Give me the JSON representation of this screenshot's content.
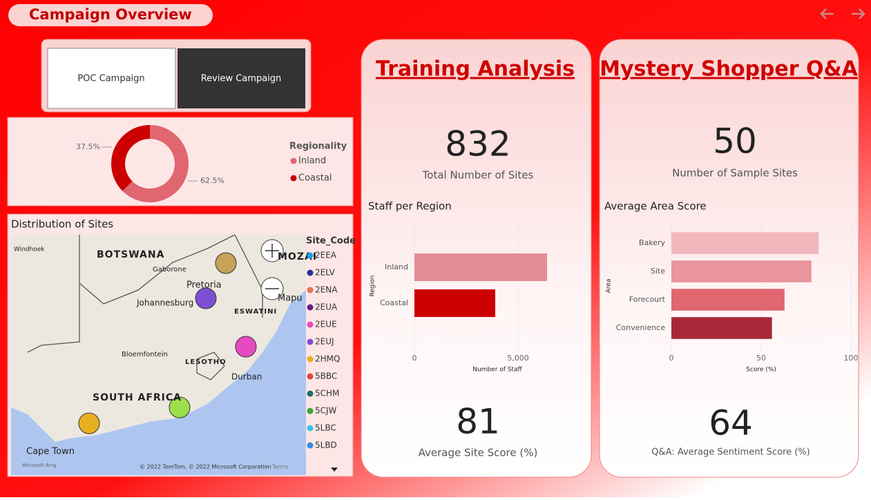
{
  "header": {
    "title": "Campaign Overview"
  },
  "buttons": [
    "POC Campaign",
    "Review Campaign"
  ],
  "cards": [
    {
      "title": "Training Analysis",
      "kpis": [
        {
          "value": 832,
          "label": "Total Number of Sites"
        },
        {
          "value": 81,
          "label": "Average Site Score (%)"
        }
      ]
    },
    {
      "title": "Mystery Shopper Q&A",
      "kpis": [
        {
          "value": 50,
          "label": "Number of Sample Sites"
        },
        {
          "value": 64,
          "label": "Q&A: Average Sentiment Score (%)"
        }
      ]
    }
  ],
  "map": {
    "title": "Distribution of Sites",
    "places": [
      "Windhoek",
      "BOTSWANA",
      "Gaborone",
      "Pretoria",
      "Johannesburg",
      "MOZAI",
      "Mapu",
      "ESWATINI",
      "Bloemfontein",
      "LESOTHO",
      "Durban",
      "SOUTH AFRICA",
      "Cape Town"
    ],
    "attribution": "© 2022 TomTom, © 2022 Microsoft Corporation",
    "terms": "Terms",
    "provider": "Microsoft Bing",
    "legend_title": "Site_Code",
    "legend": [
      {
        "name": "2EEA",
        "color": "#1f9ee8"
      },
      {
        "name": "2ELV",
        "color": "#1f2f9e"
      },
      {
        "name": "2ENA",
        "color": "#e8744a"
      },
      {
        "name": "2EUA",
        "color": "#6b1a8a"
      },
      {
        "name": "2EUE",
        "color": "#e64ac0"
      },
      {
        "name": "2EUJ",
        "color": "#7b4fd0"
      },
      {
        "name": "2HMQ",
        "color": "#e8b020"
      },
      {
        "name": "5BBC",
        "color": "#d94a4a"
      },
      {
        "name": "5CHM",
        "color": "#1a6e6e"
      },
      {
        "name": "5CJW",
        "color": "#3aa83a"
      },
      {
        "name": "5LBC",
        "color": "#33c5f0"
      },
      {
        "name": "5LBD",
        "color": "#3a8ae8"
      }
    ]
  },
  "chart_data": [
    {
      "type": "donut",
      "legend_title": "Regionality",
      "categories": [
        "Inland",
        "Coastal"
      ],
      "values": [
        62.5,
        37.5
      ],
      "value_labels": [
        "62.5%",
        "37.5%"
      ],
      "colors": [
        "#e06670",
        "#cc0000"
      ]
    },
    {
      "type": "hbar",
      "title": "Staff per Region",
      "x_label": "Number of Staff",
      "y_label": "Region",
      "categories": [
        "Inland",
        "Coastal"
      ],
      "values": [
        6400,
        3900
      ],
      "colors": [
        "#e48c93",
        "#cc0000"
      ],
      "xlim": [
        0,
        8000
      ],
      "xticks": [
        0,
        {
          "value": 5000,
          "label": "5,000"
        }
      ],
      "grid": true
    },
    {
      "type": "hbar",
      "title": "Average Area Score",
      "x_label": "Score (%)",
      "y_label": "Area",
      "categories": [
        "Bakery",
        "Site",
        "Forecourt",
        "Convenience"
      ],
      "values": [
        82,
        78,
        63,
        56
      ],
      "colors": [
        "#f0b8bc",
        "#e8959b",
        "#e06670",
        "#a82838"
      ],
      "xlim": [
        0,
        100
      ],
      "xticks": [
        0,
        50,
        100
      ],
      "grid": true
    }
  ]
}
